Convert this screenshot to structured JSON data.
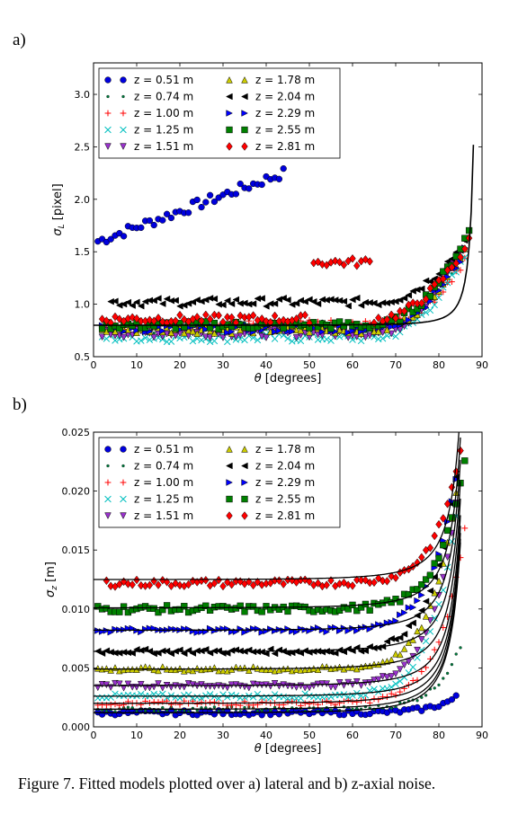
{
  "panels": {
    "a_label": "a)",
    "b_label": "b)"
  },
  "caption": "Figure 7.  Fitted models plotted over a) lateral and b) z-axial noise.",
  "legend": {
    "entries": [
      {
        "label": "z = 0.51 m",
        "marker": "circle",
        "color": "#0000dd"
      },
      {
        "label": "z = 0.74 m",
        "marker": "dot",
        "color": "#007a3d"
      },
      {
        "label": "z = 1.00 m",
        "marker": "plus",
        "color": "#ff0000"
      },
      {
        "label": "z = 1.25 m",
        "marker": "x",
        "color": "#00bfbf"
      },
      {
        "label": "z = 1.51 m",
        "marker": "tri-down",
        "color": "#9932cc"
      },
      {
        "label": "z = 1.78 m",
        "marker": "tri-up",
        "color": "#cccc00"
      },
      {
        "label": "z = 2.04 m",
        "marker": "tri-left",
        "color": "#000000"
      },
      {
        "label": "z = 2.29 m",
        "marker": "tri-right",
        "color": "#0000ff"
      },
      {
        "label": "z = 2.55 m",
        "marker": "square",
        "color": "#008000"
      },
      {
        "label": "z = 2.81 m",
        "marker": "diamond",
        "color": "#ff0000"
      }
    ]
  },
  "chart_data": [
    {
      "type": "scatter",
      "panel": "a",
      "ylabel": "σL [pixel]",
      "ylabel_main": "σ",
      "ylabel_sub": "L",
      "ylabel_unit": " [pixel]",
      "xlabel": "θ [degrees]",
      "xlim": [
        0,
        90
      ],
      "ylim": [
        0.5,
        3.3
      ],
      "xticks": [
        "0",
        "10",
        "20",
        "30",
        "40",
        "50",
        "60",
        "70",
        "80",
        "90"
      ],
      "yticks": [
        "0.5",
        "1.0",
        "1.5",
        "2.0",
        "2.5",
        "3.0"
      ],
      "legend_placement": "top-left",
      "grid": false,
      "series_baselines": [
        {
          "name": "z = 0.51 m",
          "from": 1,
          "to": 44,
          "start": 1.6,
          "end": 2.25,
          "jitter": 0.05
        },
        {
          "name": "z = 0.74 m",
          "from": 2,
          "to": 86,
          "start": 0.78,
          "end": 1.5,
          "jitter": 0.06
        },
        {
          "name": "z = 1.00 m",
          "from": 2,
          "to": 86,
          "start": 0.8,
          "end": 1.4,
          "jitter": 0.05
        },
        {
          "name": "z = 1.25 m",
          "from": 2,
          "to": 86,
          "start": 0.68,
          "end": 1.45,
          "jitter": 0.04
        },
        {
          "name": "z = 1.51 m",
          "from": 2,
          "to": 86,
          "start": 0.72,
          "end": 1.6,
          "jitter": 0.04
        },
        {
          "name": "z = 1.78 m",
          "from": 2,
          "to": 86,
          "start": 0.76,
          "end": 1.55,
          "jitter": 0.04
        },
        {
          "name": "z = 2.04 m",
          "from": 4,
          "to": 86,
          "start": 1.02,
          "end": 1.6,
          "jitter": 0.04
        },
        {
          "name": "z = 2.29 m",
          "from": 2,
          "to": 86,
          "start": 0.77,
          "end": 1.5,
          "jitter": 0.04
        },
        {
          "name": "z = 2.55 m",
          "from": 2,
          "to": 87,
          "start": 0.8,
          "end": 1.7,
          "jitter": 0.04
        },
        {
          "name": "z = 2.81 m",
          "from": 2,
          "to": 87,
          "start": 0.86,
          "end": 1.6,
          "jitter": 0.04
        }
      ],
      "model_curve": {
        "base": 0.8,
        "end_value": 2.52,
        "end_theta": 88
      }
    },
    {
      "type": "scatter",
      "panel": "b",
      "ylabel": "σz [m]",
      "ylabel_main": "σ",
      "ylabel_sub": "z",
      "ylabel_unit": " [m]",
      "xlabel": "θ [degrees]",
      "xlim": [
        0,
        90
      ],
      "ylim": [
        0,
        0.025
      ],
      "xticks": [
        "0",
        "10",
        "20",
        "30",
        "40",
        "50",
        "60",
        "70",
        "80",
        "90"
      ],
      "yticks": [
        "0.000",
        "0.005",
        "0.010",
        "0.015",
        "0.020",
        "0.025"
      ],
      "legend_placement": "top-left",
      "grid": false,
      "series_baselines": [
        {
          "name": "z = 0.51 m",
          "from": 1,
          "to": 84,
          "start": 0.0012,
          "end": 0.0025,
          "jitter": 0.0002
        },
        {
          "name": "z = 0.74 m",
          "from": 1,
          "to": 85,
          "start": 0.0015,
          "end": 0.0068,
          "jitter": 0.0002
        },
        {
          "name": "z = 1.00 m",
          "from": 1,
          "to": 86,
          "start": 0.002,
          "end": 0.0168,
          "jitter": 0.0002
        },
        {
          "name": "z = 1.25 m",
          "from": 1,
          "to": 84,
          "start": 0.0026,
          "end": 0.018,
          "jitter": 0.0002
        },
        {
          "name": "z = 1.51 m",
          "from": 1,
          "to": 84,
          "start": 0.0035,
          "end": 0.019,
          "jitter": 0.0002
        },
        {
          "name": "z = 1.78 m",
          "from": 1,
          "to": 84,
          "start": 0.0049,
          "end": 0.02,
          "jitter": 0.0002
        },
        {
          "name": "z = 2.04 m",
          "from": 1,
          "to": 84,
          "start": 0.0064,
          "end": 0.021,
          "jitter": 0.0002
        },
        {
          "name": "z = 2.29 m",
          "from": 1,
          "to": 84,
          "start": 0.0082,
          "end": 0.021,
          "jitter": 0.0002
        },
        {
          "name": "z = 2.55 m",
          "from": 1,
          "to": 86,
          "start": 0.01,
          "end": 0.0225,
          "jitter": 0.0003
        },
        {
          "name": "z = 2.81 m",
          "from": 3,
          "to": 85,
          "start": 0.0122,
          "end": 0.0235,
          "jitter": 0.0003
        }
      ],
      "model_curves": [
        0.0012,
        0.0015,
        0.002,
        0.0026,
        0.0035,
        0.0049,
        0.0064,
        0.0082,
        0.0101,
        0.0125
      ]
    }
  ]
}
